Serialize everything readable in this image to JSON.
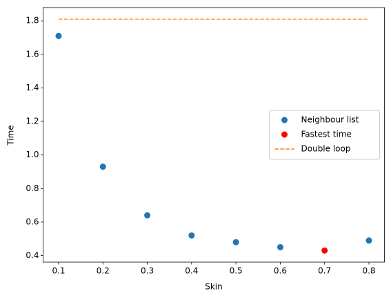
{
  "chart_data": {
    "type": "scatter",
    "x_label": "Skin",
    "y_label": "Time",
    "series": [
      {
        "name": "Neighbour list",
        "color": "#1f77b4",
        "style": "points",
        "x": [
          0.1,
          0.2,
          0.3,
          0.4,
          0.5,
          0.6,
          0.8
        ],
        "values": [
          1.71,
          0.93,
          0.64,
          0.52,
          0.48,
          0.45,
          0.49
        ]
      },
      {
        "name": "Fastest time",
        "color": "#ff0000",
        "style": "points",
        "x": [
          0.7
        ],
        "values": [
          0.43
        ]
      },
      {
        "name": "Double loop",
        "color": "#ff7f0e",
        "style": "dashed",
        "x": [
          0.1,
          0.8
        ],
        "values": [
          1.81,
          1.81
        ]
      }
    ],
    "xlim": [
      0.065,
      0.835
    ],
    "xticks": [
      0.1,
      0.2,
      0.3,
      0.4,
      0.5,
      0.6,
      0.7,
      0.8
    ],
    "ylim": [
      0.361,
      1.879
    ],
    "yticks": [
      0.4,
      0.6,
      0.8,
      1.0,
      1.2,
      1.4,
      1.6,
      1.8
    ],
    "legend": "center right",
    "grid": false
  }
}
